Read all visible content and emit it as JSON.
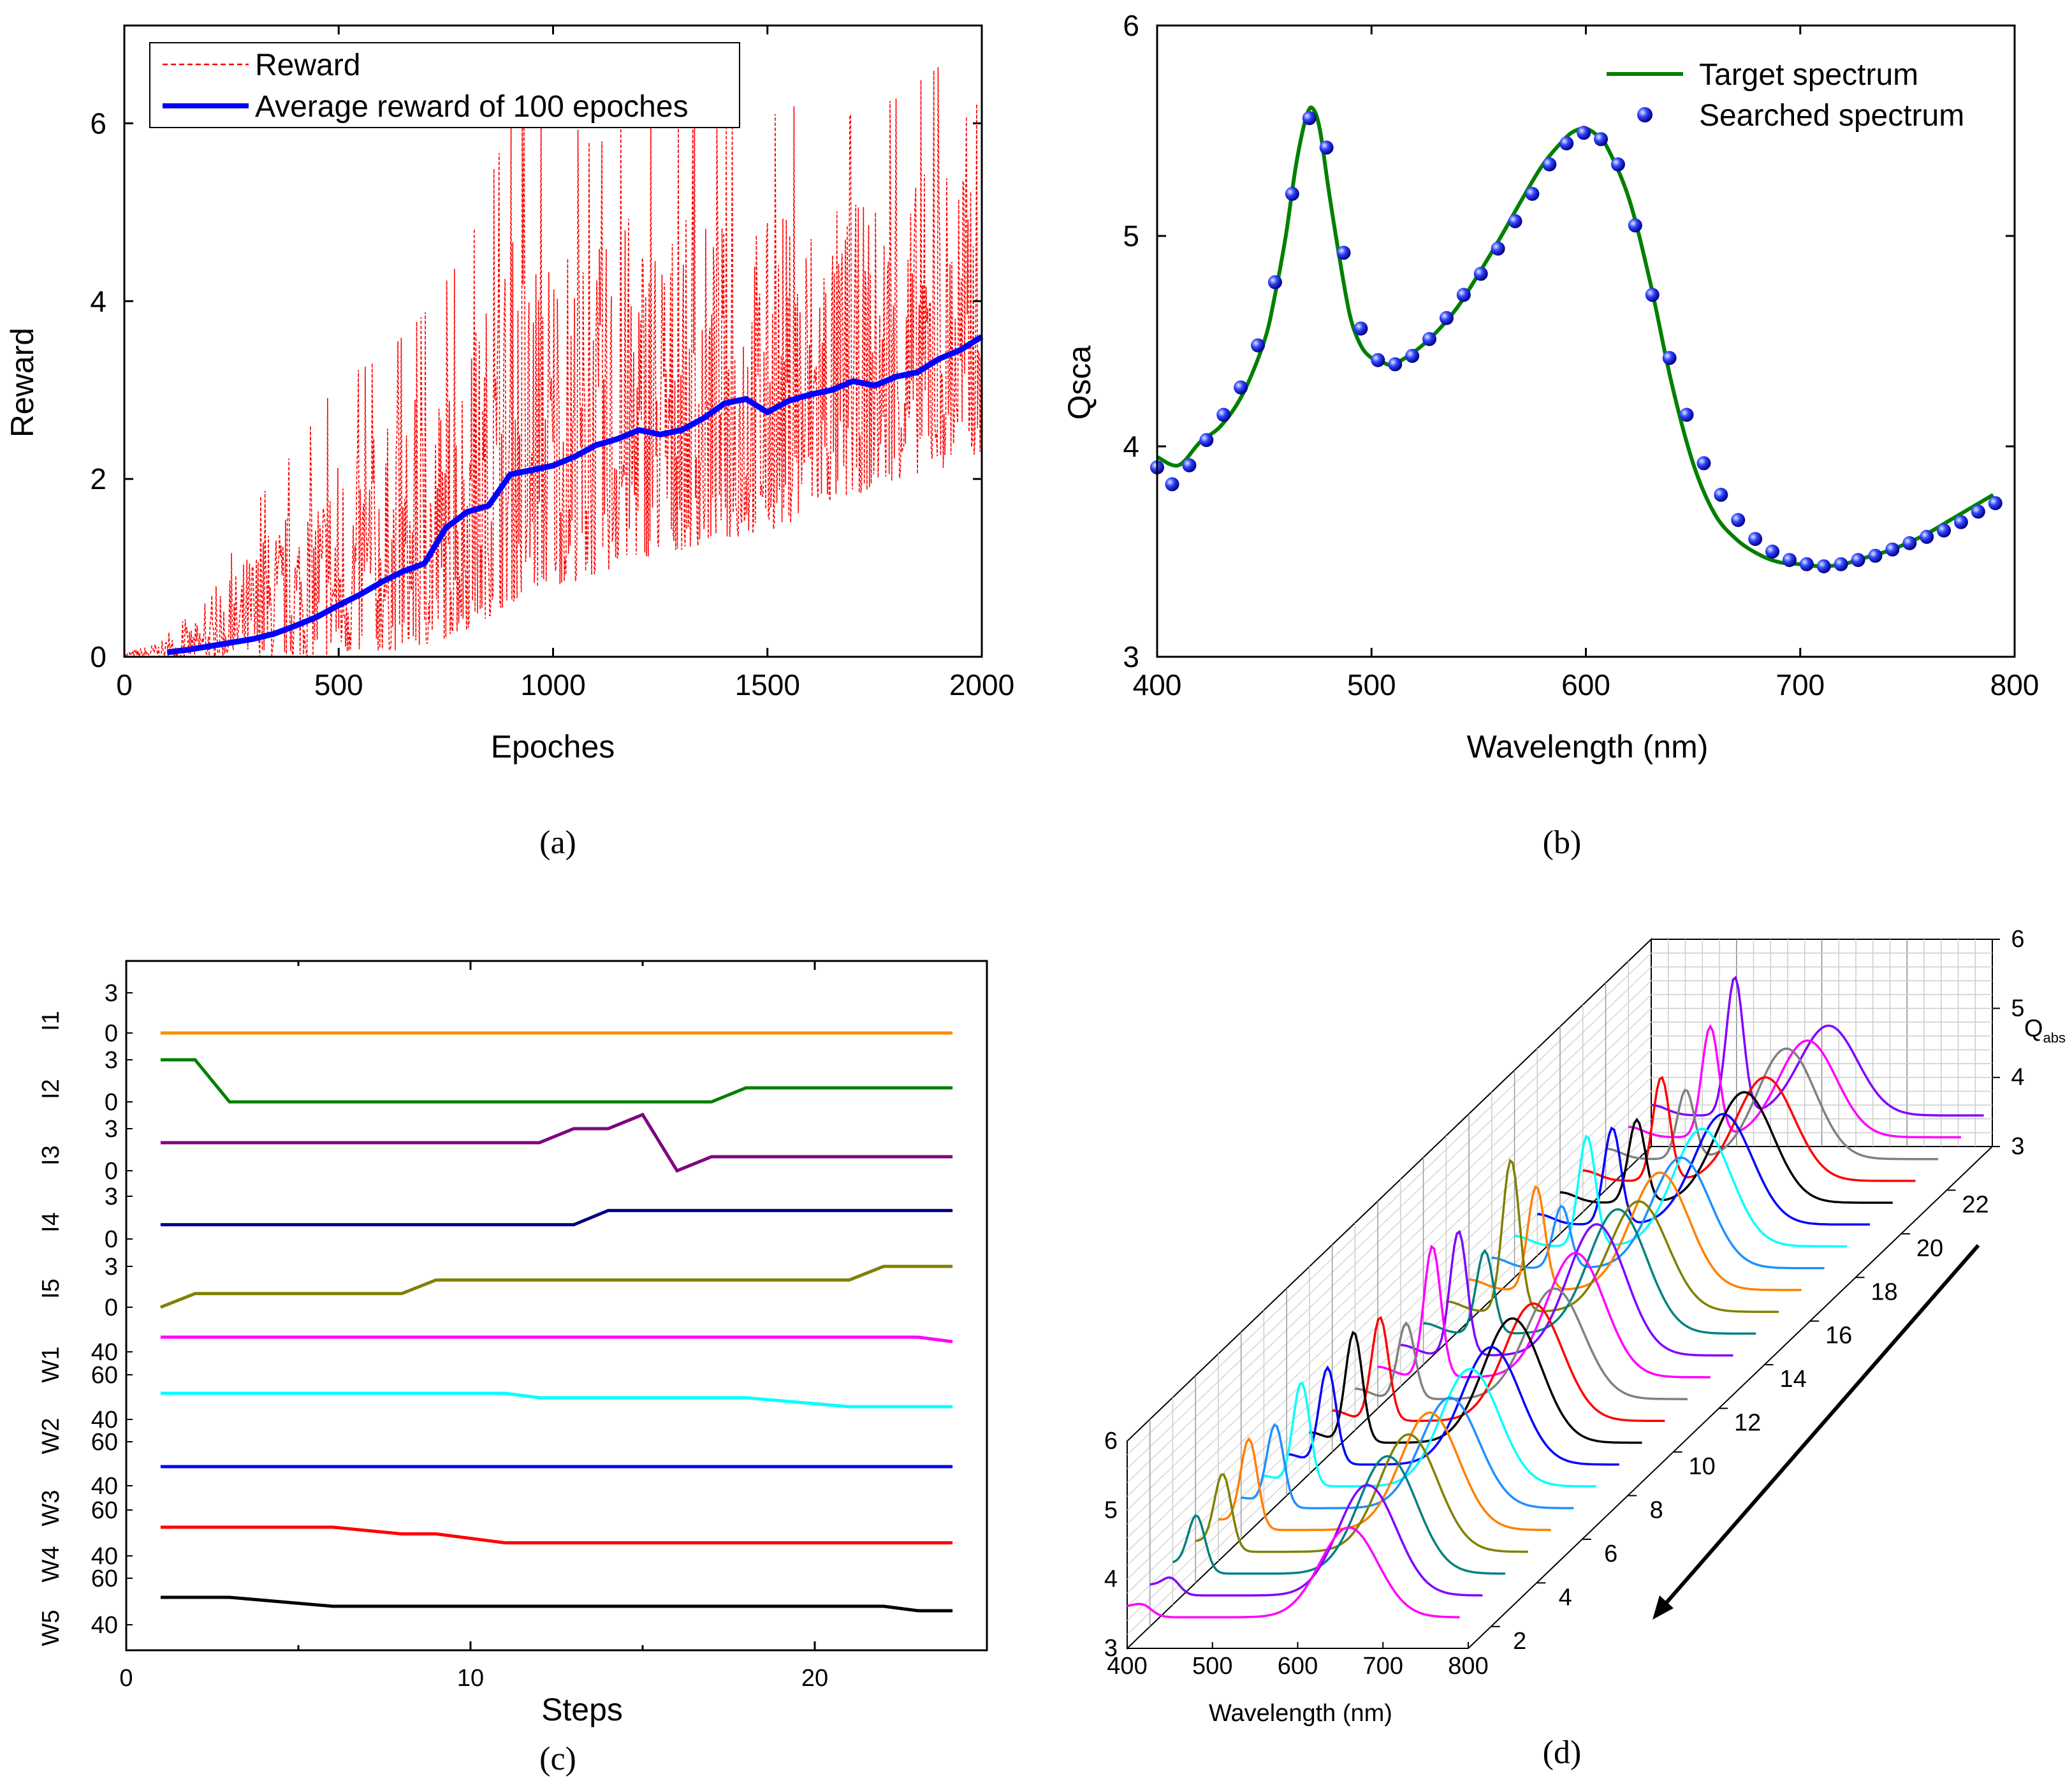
{
  "colors": {
    "reward": "#ff0000",
    "average": "#0000ff",
    "target": "#008000",
    "searched": "#2233ee",
    "c_traces": [
      "#ff8c00",
      "#008000",
      "#800080",
      "#000080",
      "#808000",
      "#ff00ff",
      "#00ffff",
      "#0000ff",
      "#ff0000",
      "#000000"
    ],
    "d_cycle": [
      "#ff00ff",
      "#8000ff",
      "#008080",
      "#808000",
      "#ff8000",
      "#1e90ff",
      "#00ffff",
      "#0000ff",
      "#000000",
      "#ff0000",
      "#808080"
    ]
  },
  "panel_a": {
    "caption": "(a)"
  },
  "panel_b": {
    "caption": "(b)"
  },
  "panel_c": {
    "caption": "(c)"
  },
  "panel_d": {
    "caption": "(d)"
  },
  "chart_data": [
    {
      "id": "a",
      "type": "line",
      "xlabel": "Epoches",
      "ylabel": "Reward",
      "xlim": [
        0,
        2000
      ],
      "ylim": [
        0,
        7.1
      ],
      "xticks": [
        0,
        500,
        1000,
        1500,
        2000
      ],
      "yticks": [
        0,
        2,
        4,
        6
      ],
      "legend_position": "top-left",
      "series": [
        {
          "name": "Reward",
          "style": "dashed",
          "description_points": "noisy per-epoch reward; envelope (lower/upper) estimated from figure",
          "x": [
            0,
            100,
            200,
            300,
            400,
            500,
            600,
            700,
            800,
            900,
            1000,
            1100,
            1200,
            1300,
            1400,
            1500,
            1600,
            1700,
            1800,
            1900,
            2000
          ],
          "lower": [
            0,
            0,
            0,
            0,
            0,
            0,
            0.05,
            0.1,
            0.3,
            0.6,
            0.8,
            0.9,
            1.1,
            1.2,
            1.3,
            1.4,
            1.6,
            1.8,
            2.0,
            2.1,
            2.3
          ],
          "upper": [
            0.05,
            0.2,
            0.5,
            1.3,
            1.8,
            2.4,
            2.6,
            3.0,
            3.6,
            4.8,
            5.0,
            4.6,
            5.2,
            4.9,
            5.0,
            5.0,
            5.2,
            5.1,
            5.3,
            5.6,
            6.5
          ]
        },
        {
          "name": "Average reward of 100 epoches",
          "style": "solid-thick",
          "x": [
            100,
            150,
            200,
            250,
            300,
            350,
            400,
            450,
            500,
            550,
            600,
            650,
            700,
            750,
            800,
            850,
            900,
            950,
            1000,
            1050,
            1100,
            1150,
            1200,
            1250,
            1300,
            1350,
            1400,
            1450,
            1500,
            1550,
            1600,
            1650,
            1700,
            1750,
            1800,
            1850,
            1900,
            1950,
            2000
          ],
          "y": [
            0.05,
            0.08,
            0.12,
            0.16,
            0.2,
            0.26,
            0.35,
            0.45,
            0.58,
            0.7,
            0.84,
            0.96,
            1.05,
            1.45,
            1.63,
            1.7,
            2.05,
            2.1,
            2.15,
            2.25,
            2.38,
            2.45,
            2.55,
            2.5,
            2.55,
            2.68,
            2.85,
            2.9,
            2.75,
            2.88,
            2.95,
            3.0,
            3.1,
            3.05,
            3.15,
            3.2,
            3.35,
            3.45,
            3.6
          ]
        }
      ]
    },
    {
      "id": "b",
      "type": "line",
      "xlabel": "Wavelength (nm)",
      "ylabel": "Qsca",
      "xlim": [
        400,
        800
      ],
      "ylim": [
        3,
        6
      ],
      "xticks": [
        400,
        500,
        600,
        700,
        800
      ],
      "yticks": [
        3,
        4,
        5,
        6
      ],
      "legend_position": "top-right",
      "series": [
        {
          "name": "Target spectrum",
          "style": "line",
          "x": [
            400,
            410,
            420,
            430,
            440,
            450,
            455,
            460,
            465,
            470,
            473,
            476,
            480,
            485,
            490,
            495,
            500,
            505,
            510,
            520,
            530,
            540,
            550,
            560,
            570,
            580,
            590,
            595,
            600,
            605,
            610,
            620,
            630,
            640,
            650,
            660,
            670,
            680,
            690,
            700,
            710,
            720,
            730,
            740,
            750,
            760,
            770,
            780,
            790
          ],
          "y": [
            3.95,
            3.91,
            4.02,
            4.1,
            4.25,
            4.5,
            4.72,
            5.0,
            5.35,
            5.58,
            5.6,
            5.5,
            5.22,
            4.9,
            4.62,
            4.48,
            4.42,
            4.4,
            4.39,
            4.45,
            4.54,
            4.66,
            4.82,
            4.99,
            5.17,
            5.34,
            5.46,
            5.5,
            5.51,
            5.48,
            5.42,
            5.18,
            4.78,
            4.3,
            3.92,
            3.68,
            3.56,
            3.49,
            3.45,
            3.44,
            3.43,
            3.44,
            3.47,
            3.5,
            3.54,
            3.59,
            3.65,
            3.71,
            3.77
          ]
        },
        {
          "name": "Searched spectrum",
          "style": "markers",
          "x": [
            400,
            407,
            415,
            423,
            431,
            439,
            447,
            455,
            463,
            471,
            479,
            487,
            495,
            503,
            511,
            519,
            527,
            535,
            543,
            551,
            559,
            567,
            575,
            583,
            591,
            599,
            607,
            615,
            623,
            631,
            639,
            647,
            655,
            663,
            671,
            679,
            687,
            695,
            703,
            711,
            719,
            727,
            735,
            743,
            751,
            759,
            767,
            775,
            783,
            791
          ],
          "y": [
            3.9,
            3.82,
            3.91,
            4.03,
            4.15,
            4.28,
            4.48,
            4.78,
            5.2,
            5.56,
            5.42,
            4.92,
            4.56,
            4.41,
            4.39,
            4.43,
            4.51,
            4.61,
            4.72,
            4.82,
            4.94,
            5.07,
            5.2,
            5.34,
            5.44,
            5.49,
            5.46,
            5.34,
            5.05,
            4.72,
            4.42,
            4.15,
            3.92,
            3.77,
            3.65,
            3.56,
            3.5,
            3.46,
            3.44,
            3.43,
            3.44,
            3.46,
            3.48,
            3.51,
            3.54,
            3.57,
            3.6,
            3.64,
            3.69,
            3.73
          ]
        }
      ]
    },
    {
      "id": "c",
      "type": "line",
      "xlabel": "Steps",
      "xlim": [
        0,
        25
      ],
      "xticks": [
        0,
        10,
        20
      ],
      "stacked_tracks": [
        {
          "name": "I1",
          "ticks": [
            "3",
            "0"
          ],
          "range": [
            0,
            3
          ],
          "steps": [
            1,
            24
          ],
          "values": [
            0,
            0
          ]
        },
        {
          "name": "I2",
          "ticks": [
            "3",
            "0"
          ],
          "range": [
            0,
            3
          ],
          "steps": [
            1,
            2,
            3,
            17,
            18,
            24
          ],
          "values": [
            3,
            3,
            0,
            0,
            1,
            1
          ]
        },
        {
          "name": "I3",
          "ticks": [
            "3",
            "0"
          ],
          "range": [
            0,
            3
          ],
          "steps": [
            1,
            12,
            13,
            14,
            15,
            16,
            17,
            24
          ],
          "values": [
            2,
            2,
            3,
            3,
            4,
            0,
            1,
            1
          ]
        },
        {
          "name": "I4",
          "ticks": [
            "3",
            "0"
          ],
          "range": [
            0,
            3
          ],
          "steps": [
            1,
            13,
            14,
            24
          ],
          "values": [
            1,
            1,
            2,
            2
          ]
        },
        {
          "name": "I5",
          "ticks": [
            "3",
            "0"
          ],
          "range": [
            0,
            3
          ],
          "steps": [
            1,
            2,
            8,
            9,
            21,
            22,
            24
          ],
          "values": [
            0,
            1,
            1,
            2,
            2,
            3,
            3
          ]
        },
        {
          "name": "W1",
          "ticks": [
            "40",
            "60"
          ],
          "range": [
            40,
            60
          ],
          "steps": [
            1,
            23,
            24
          ],
          "values": [
            55,
            55,
            53
          ]
        },
        {
          "name": "W2",
          "ticks": [
            "40",
            "60"
          ],
          "range": [
            40,
            60
          ],
          "steps": [
            1,
            11,
            12,
            18,
            21,
            24
          ],
          "values": [
            55,
            55,
            53,
            53,
            49,
            49
          ]
        },
        {
          "name": "W3",
          "ticks": [
            "40",
            "60"
          ],
          "range": [
            40,
            60
          ],
          "steps": [
            1,
            24
          ],
          "values": [
            55,
            55
          ]
        },
        {
          "name": "W4",
          "ticks": [
            "40"
          ],
          "range": [
            40,
            60
          ],
          "steps": [
            1,
            6,
            8,
            9,
            11,
            24
          ],
          "values": [
            55,
            55,
            52,
            52,
            48,
            48
          ]
        },
        {
          "name": "W5",
          "ticks": [
            "40"
          ],
          "range": [
            40,
            60
          ],
          "steps": [
            1,
            3,
            6,
            22,
            23,
            24
          ],
          "values": [
            45,
            45,
            41,
            41,
            39,
            39
          ]
        }
      ]
    },
    {
      "id": "d",
      "type": "line",
      "projection": "3d waterfall",
      "xlabel": "Wavelength (nm)",
      "zlabel": "Q",
      "zlabel_sub": "abs",
      "xlim": [
        400,
        800
      ],
      "zlim": [
        3,
        6
      ],
      "ylim": [
        1,
        24
      ],
      "xticks": [
        400,
        500,
        600,
        700,
        800
      ],
      "zticks": [
        3,
        4,
        5,
        6
      ],
      "yticks": [
        2,
        4,
        6,
        8,
        10,
        12,
        14,
        16,
        18,
        20,
        22
      ],
      "series_count": 24,
      "peak1_wavelength_nm": [
        420,
        425,
        428,
        432,
        436,
        440,
        444,
        448,
        452,
        456,
        460,
        464,
        468,
        472,
        476,
        479,
        482,
        485,
        488,
        490,
        492,
        494,
        496,
        498
      ],
      "peak1_height": [
        3.5,
        3.6,
        4.2,
        4.5,
        4.7,
        4.6,
        4.9,
        4.8,
        5.0,
        4.9,
        4.5,
        5.3,
        5.2,
        4.6,
        5.6,
        4.9,
        4.3,
        5.0,
        4.8,
        4.6,
        4.9,
        4.4,
        5.0,
        5.4
      ],
      "peak2_wavelength_nm": [
        660,
        655,
        652,
        650,
        648,
        645,
        642,
        640,
        638,
        636,
        634,
        632,
        630,
        628,
        626,
        624,
        622,
        620,
        618,
        616,
        614,
        612,
        610,
        608
      ],
      "peak2_height": [
        4.7,
        5.0,
        5.1,
        5.1,
        5.1,
        5.0,
        5.1,
        5.1,
        5.2,
        5.1,
        5.0,
        5.2,
        5.3,
        5.2,
        5.0,
        5.1,
        5.0,
        5.1,
        5.0,
        5.0,
        4.9,
        5.0,
        4.8,
        4.7
      ]
    }
  ]
}
